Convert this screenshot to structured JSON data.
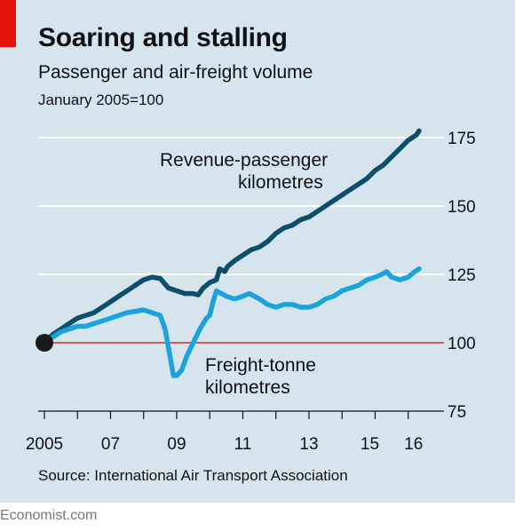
{
  "header": {
    "title": "Soaring and stalling",
    "subtitle": "Passenger and air-freight volume",
    "unit_note": "January 2005=100"
  },
  "source": "Source: International Air Transport Association",
  "brand": "Economist.com",
  "colors": {
    "background": "#d6e4ed",
    "accent_red": "#e3120b",
    "passenger": "#0d4f69",
    "freight": "#1ba3dc",
    "baseline": "#d7301f",
    "grid": "#ffffff"
  },
  "chart_data": {
    "type": "line",
    "title": "Soaring and stalling",
    "subtitle": "Passenger and air-freight volume",
    "xlabel": "",
    "ylabel": "January 2005=100",
    "xlim": [
      2005.0,
      2016.33
    ],
    "ylim": [
      75,
      180
    ],
    "y_ticks": [
      75,
      100,
      125,
      150,
      175
    ],
    "y_tick_labels": [
      "75",
      "100",
      "125",
      "150",
      "175"
    ],
    "x_ticks": [
      2005,
      2007,
      2009,
      2011,
      2013,
      2015,
      2016
    ],
    "x_tick_labels": [
      "2005",
      "07",
      "09",
      "11",
      "13",
      "15",
      "16"
    ],
    "y_axis_side": "right",
    "grid": true,
    "baseline": 100,
    "start_marker": {
      "x": 2005.0,
      "y": 100
    },
    "series": [
      {
        "name": "Revenue-passenger kilometres",
        "color": "#0d4f69",
        "points": [
          [
            2005.0,
            100
          ],
          [
            2005.25,
            103
          ],
          [
            2005.5,
            105
          ],
          [
            2005.75,
            107
          ],
          [
            2006.0,
            109
          ],
          [
            2006.25,
            110
          ],
          [
            2006.5,
            111
          ],
          [
            2006.75,
            113
          ],
          [
            2007.0,
            115
          ],
          [
            2007.25,
            117
          ],
          [
            2007.5,
            119
          ],
          [
            2007.75,
            121
          ],
          [
            2008.0,
            123
          ],
          [
            2008.25,
            124
          ],
          [
            2008.5,
            123.5
          ],
          [
            2008.75,
            120
          ],
          [
            2009.0,
            119
          ],
          [
            2009.25,
            118
          ],
          [
            2009.5,
            118
          ],
          [
            2009.65,
            117.5
          ],
          [
            2009.8,
            120
          ],
          [
            2010.0,
            122
          ],
          [
            2010.2,
            123
          ],
          [
            2010.3,
            127
          ],
          [
            2010.45,
            126
          ],
          [
            2010.55,
            128
          ],
          [
            2010.75,
            130
          ],
          [
            2011.0,
            132
          ],
          [
            2011.25,
            134
          ],
          [
            2011.5,
            135
          ],
          [
            2011.75,
            137
          ],
          [
            2012.0,
            140
          ],
          [
            2012.25,
            142
          ],
          [
            2012.5,
            143
          ],
          [
            2012.75,
            145
          ],
          [
            2013.0,
            146
          ],
          [
            2013.25,
            148
          ],
          [
            2013.5,
            150
          ],
          [
            2013.75,
            152
          ],
          [
            2014.0,
            154
          ],
          [
            2014.25,
            156
          ],
          [
            2014.5,
            158
          ],
          [
            2014.75,
            160
          ],
          [
            2015.0,
            163
          ],
          [
            2015.25,
            165
          ],
          [
            2015.5,
            168
          ],
          [
            2015.75,
            171
          ],
          [
            2016.0,
            174
          ],
          [
            2016.25,
            176
          ],
          [
            2016.33,
            177.5
          ]
        ],
        "label_lines": [
          "Revenue-passenger",
          "kilometres"
        ]
      },
      {
        "name": "Freight-tonne kilometres",
        "color": "#1ba3dc",
        "points": [
          [
            2005.0,
            100
          ],
          [
            2005.25,
            102
          ],
          [
            2005.5,
            104
          ],
          [
            2005.75,
            105
          ],
          [
            2006.0,
            106
          ],
          [
            2006.25,
            106
          ],
          [
            2006.5,
            107
          ],
          [
            2006.75,
            108
          ],
          [
            2007.0,
            109
          ],
          [
            2007.25,
            110
          ],
          [
            2007.5,
            111
          ],
          [
            2007.75,
            111.5
          ],
          [
            2008.0,
            112
          ],
          [
            2008.25,
            111
          ],
          [
            2008.5,
            110
          ],
          [
            2008.65,
            105
          ],
          [
            2008.8,
            95
          ],
          [
            2008.9,
            88
          ],
          [
            2009.0,
            88
          ],
          [
            2009.15,
            90
          ],
          [
            2009.3,
            95
          ],
          [
            2009.5,
            100
          ],
          [
            2009.7,
            105
          ],
          [
            2009.9,
            109
          ],
          [
            2010.0,
            110
          ],
          [
            2010.1,
            115
          ],
          [
            2010.2,
            119
          ],
          [
            2010.35,
            118
          ],
          [
            2010.5,
            117
          ],
          [
            2010.75,
            116
          ],
          [
            2011.0,
            117
          ],
          [
            2011.2,
            118
          ],
          [
            2011.5,
            116
          ],
          [
            2011.75,
            114
          ],
          [
            2012.0,
            113
          ],
          [
            2012.25,
            114
          ],
          [
            2012.5,
            114
          ],
          [
            2012.75,
            113
          ],
          [
            2013.0,
            113
          ],
          [
            2013.25,
            114
          ],
          [
            2013.5,
            116
          ],
          [
            2013.75,
            117
          ],
          [
            2014.0,
            119
          ],
          [
            2014.25,
            120
          ],
          [
            2014.5,
            121
          ],
          [
            2014.75,
            123
          ],
          [
            2015.0,
            124
          ],
          [
            2015.2,
            125
          ],
          [
            2015.35,
            126
          ],
          [
            2015.5,
            124
          ],
          [
            2015.75,
            123
          ],
          [
            2016.0,
            124
          ],
          [
            2016.2,
            126
          ],
          [
            2016.33,
            127
          ]
        ],
        "label_lines": [
          "Freight-tonne",
          "kilometres"
        ]
      }
    ]
  }
}
